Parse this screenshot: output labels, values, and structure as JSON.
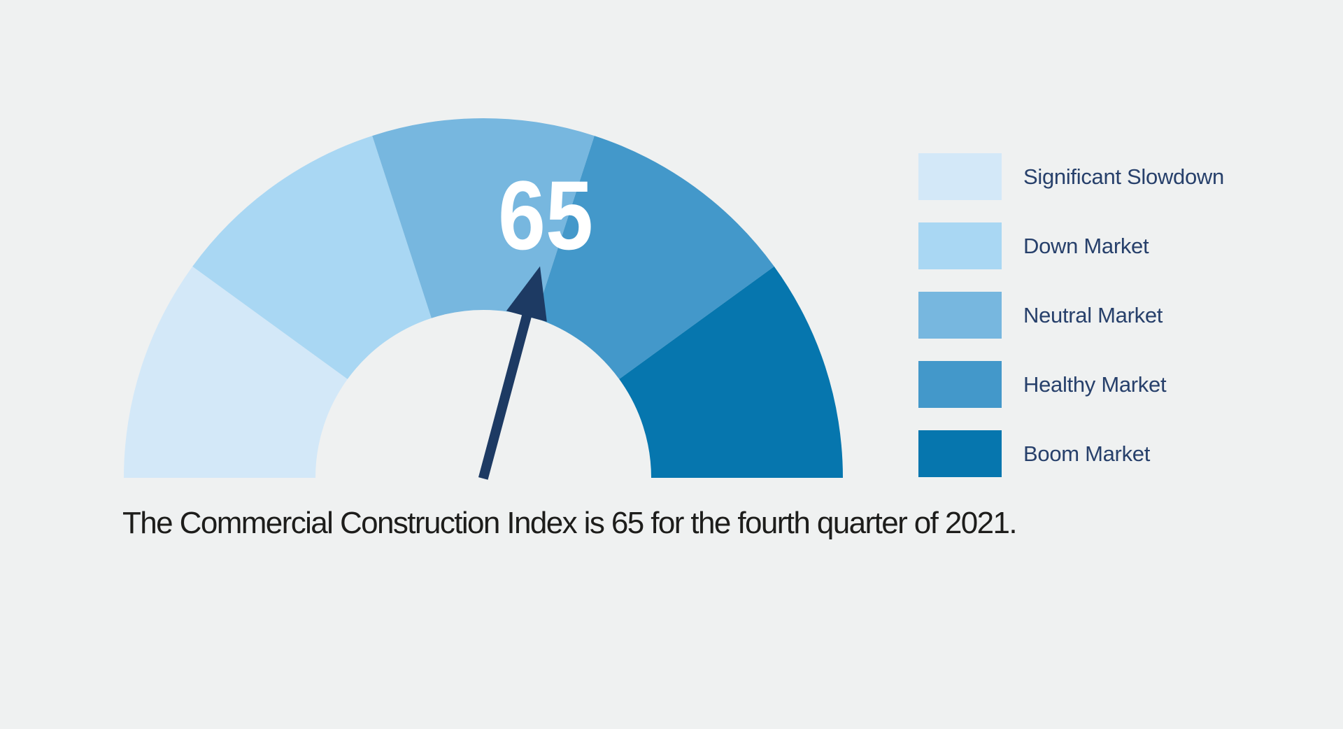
{
  "page": {
    "background": "#eff1f1"
  },
  "chart_data": {
    "type": "gauge",
    "value": "65",
    "value_color": "#ffffff",
    "min": 0,
    "max": 100,
    "needle_angle_deg": 15,
    "needle_color": "#1d3a63",
    "segments": [
      {
        "label": "Significant Slowdown",
        "color": "#d3e8f8"
      },
      {
        "label": "Down Market",
        "color": "#a9d7f3"
      },
      {
        "label": "Neutral Market",
        "color": "#77b7df"
      },
      {
        "label": "Healthy Market",
        "color": "#4398ca"
      },
      {
        "label": "Boom Market",
        "color": "#0676ae"
      }
    ],
    "legend_position": "right",
    "caption": "The Commercial Construction Index is 65 for the fourth quarter of 2021."
  },
  "legend": {
    "text_color": "#27406b"
  },
  "caption": {
    "color": "#1d1d1b"
  }
}
